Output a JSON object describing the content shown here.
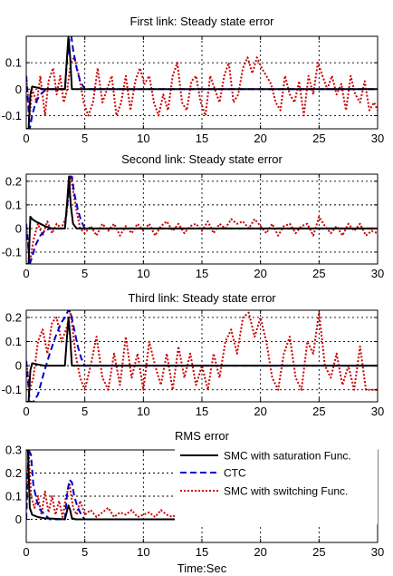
{
  "chart_data": [
    {
      "type": "line",
      "title": "First link: Steady state error",
      "xlim": [
        0,
        30
      ],
      "ylim": [
        -0.15,
        0.2
      ],
      "xticks": [
        0,
        5,
        10,
        15,
        20,
        25,
        30
      ],
      "yticks": [
        -0.1,
        0,
        0.1
      ],
      "ytick_labels": [
        "-0.1",
        "0",
        "0.1"
      ],
      "grid": true,
      "series": [
        {
          "color": "#000000",
          "style": "solid",
          "width": 2,
          "x": [
            0,
            0.2,
            0.35,
            0.5,
            1.0,
            1.5,
            3.3,
            3.45,
            3.6,
            3.75,
            3.9,
            4.2,
            5,
            30
          ],
          "y": [
            -0.15,
            -0.15,
            -0.02,
            0.01,
            0.005,
            0,
            0,
            0.1,
            0.2,
            0.12,
            0,
            0,
            0,
            0
          ]
        },
        {
          "color": "#0000cc",
          "style": "dashed",
          "width": 2,
          "x": [
            0,
            0.3,
            0.5,
            0.8,
            1.2,
            1.6,
            2.0,
            3.3,
            3.5,
            3.7,
            3.85,
            4.0,
            4.3,
            4.6,
            5.0,
            30
          ],
          "y": [
            0.05,
            -0.15,
            -0.1,
            -0.05,
            -0.02,
            -0.005,
            0,
            0,
            0.12,
            0.2,
            0.2,
            0.15,
            0.08,
            0.03,
            0,
            0
          ]
        },
        {
          "color": "#cc0000",
          "style": "dotted",
          "width": 2,
          "x": [
            0,
            0.3,
            0.5,
            0.9,
            1.2,
            1.6,
            1.9,
            2.3,
            2.6,
            2.9,
            3.2,
            3.5,
            3.8,
            4.1,
            4.5,
            4.9,
            5.3,
            5.7,
            6.1,
            6.5,
            6.9,
            7.3,
            7.7,
            8.1,
            8.5,
            8.9,
            9.3,
            9.7,
            10.1,
            10.5,
            10.9,
            11.3,
            11.7,
            12.1,
            12.5,
            12.9,
            13.3,
            13.7,
            14.1,
            14.5,
            14.9,
            15.3,
            15.7,
            16.1,
            16.5,
            16.9,
            17.3,
            17.7,
            18.1,
            18.5,
            18.9,
            19.3,
            19.7,
            20.1,
            20.5,
            20.9,
            21.3,
            21.7,
            22.1,
            22.5,
            22.9,
            23.3,
            23.7,
            24.1,
            24.5,
            24.9,
            25.3,
            25.7,
            26.1,
            26.5,
            26.9,
            27.3,
            27.7,
            28.1,
            28.5,
            28.9,
            29.3,
            29.7,
            30
          ],
          "y": [
            0.05,
            -0.1,
            0.0,
            -0.05,
            0.05,
            -0.1,
            0.03,
            0.08,
            -0.02,
            0.05,
            -0.05,
            0.0,
            0.1,
            0.12,
            0.05,
            -0.05,
            -0.1,
            -0.05,
            0.08,
            -0.05,
            0.0,
            0.05,
            -0.1,
            -0.05,
            0.05,
            -0.08,
            0.03,
            0.08,
            0.02,
            0.05,
            -0.05,
            -0.1,
            -0.02,
            -0.08,
            0.05,
            0.1,
            -0.05,
            -0.08,
            0.03,
            0.05,
            -0.05,
            -0.1,
            0.05,
            0.0,
            -0.05,
            0.05,
            0.1,
            -0.05,
            -0.02,
            0.08,
            0.12,
            0.06,
            0.12,
            0.08,
            0.05,
            0.02,
            -0.05,
            -0.08,
            0.05,
            -0.02,
            -0.05,
            0.03,
            -0.1,
            0.05,
            -0.02,
            0.1,
            0.05,
            0.0,
            0.05,
            -0.02,
            0.02,
            -0.08,
            0.05,
            -0.02,
            -0.05,
            0.03,
            -0.08,
            -0.05,
            -0.08
          ]
        }
      ]
    },
    {
      "type": "line",
      "title": "Second link: Steady state error",
      "xlim": [
        0,
        30
      ],
      "ylim": [
        -0.15,
        0.23
      ],
      "xticks": [
        0,
        5,
        10,
        15,
        20,
        25,
        30
      ],
      "yticks": [
        -0.1,
        0,
        0.1,
        0.2
      ],
      "ytick_labels": [
        "-0.1",
        "0",
        "0.1",
        "0.2"
      ],
      "grid": true,
      "series": [
        {
          "color": "#000000",
          "style": "solid",
          "width": 2,
          "x": [
            0,
            0.2,
            0.35,
            0.5,
            0.8,
            1.2,
            1.6,
            2.2,
            3.0,
            3.3,
            3.5,
            3.65,
            3.8,
            4.0,
            4.3,
            5,
            30
          ],
          "y": [
            -0.15,
            -0.15,
            0.05,
            0.04,
            0.03,
            0.02,
            0.01,
            0,
            0,
            0,
            0.12,
            0.22,
            0.1,
            0.02,
            0,
            0,
            0
          ]
        },
        {
          "color": "#0000cc",
          "style": "dashed",
          "width": 2,
          "x": [
            0,
            0.3,
            0.5,
            0.8,
            1.2,
            1.6,
            2.0,
            3.3,
            3.5,
            3.7,
            3.9,
            4.1,
            4.4,
            4.7,
            5.0,
            30
          ],
          "y": [
            0.02,
            -0.15,
            -0.12,
            -0.07,
            -0.03,
            -0.01,
            0,
            0,
            0.1,
            0.22,
            0.22,
            0.15,
            0.08,
            0.03,
            0,
            0
          ]
        },
        {
          "color": "#cc0000",
          "style": "dotted",
          "width": 2,
          "x": [
            0,
            0.3,
            0.6,
            1.0,
            1.4,
            1.8,
            2.2,
            2.6,
            3.0,
            3.4,
            3.8,
            4.2,
            4.6,
            5.0,
            5.5,
            6.0,
            6.5,
            7.0,
            7.5,
            8.0,
            8.5,
            9.0,
            9.5,
            10.0,
            10.5,
            11.0,
            11.5,
            12.0,
            12.5,
            13.0,
            13.5,
            14.0,
            14.5,
            15.0,
            15.5,
            16.0,
            16.5,
            17.0,
            17.5,
            18.0,
            18.5,
            19.0,
            19.5,
            20.0,
            20.5,
            21.0,
            21.5,
            22.0,
            22.5,
            23.0,
            23.5,
            24.0,
            24.5,
            25.0,
            25.5,
            26.0,
            26.5,
            27.0,
            27.5,
            28.0,
            28.5,
            29.0,
            29.5,
            30
          ],
          "y": [
            0.02,
            -0.15,
            -0.05,
            0.02,
            -0.03,
            0.03,
            -0.02,
            0.02,
            0.0,
            0.05,
            0.22,
            0.1,
            0.0,
            -0.02,
            0.01,
            -0.03,
            0.02,
            -0.01,
            0.02,
            -0.03,
            0.01,
            -0.02,
            0.02,
            -0.01,
            0.02,
            -0.03,
            0.01,
            0.03,
            -0.01,
            0.02,
            -0.02,
            0.01,
            0.02,
            -0.01,
            0.03,
            -0.02,
            0.02,
            0.0,
            0.04,
            0.02,
            0.03,
            0.0,
            0.04,
            0.01,
            -0.02,
            0.02,
            -0.03,
            0.01,
            0.02,
            -0.02,
            0.01,
            0.02,
            -0.03,
            0.05,
            0.01,
            -0.02,
            0.01,
            -0.03,
            0.02,
            -0.01,
            0.02,
            -0.03,
            -0.01,
            -0.02
          ]
        }
      ]
    },
    {
      "type": "line",
      "title": "Third link: Steady state error",
      "xlim": [
        0,
        30
      ],
      "ylim": [
        -0.15,
        0.23
      ],
      "xticks": [
        0,
        5,
        10,
        15,
        20,
        25,
        30
      ],
      "yticks": [
        -0.1,
        0,
        0.1,
        0.2
      ],
      "ytick_labels": [
        "-0.1",
        "0",
        "0.1",
        "0.2"
      ],
      "grid": true,
      "series": [
        {
          "color": "#000000",
          "style": "solid",
          "width": 2,
          "x": [
            0,
            0.2,
            0.35,
            0.5,
            1.0,
            1.5,
            3.3,
            3.45,
            3.6,
            3.75,
            3.9,
            4.2,
            5,
            30
          ],
          "y": [
            -0.15,
            -0.15,
            -0.02,
            0.01,
            0.005,
            0,
            0,
            0.1,
            0.2,
            0.12,
            0,
            0,
            0,
            0
          ]
        },
        {
          "color": "#0000cc",
          "style": "dashed",
          "width": 2,
          "x": [
            0,
            0.3,
            0.6,
            1.0,
            1.5,
            2.0,
            2.5,
            3.0,
            3.3,
            3.6,
            3.8,
            4.1,
            4.4,
            4.7,
            5.0,
            30
          ],
          "y": [
            0.02,
            -0.15,
            -0.15,
            -0.12,
            -0.03,
            0.05,
            0.12,
            0.18,
            0.2,
            0.23,
            0.22,
            0.15,
            0.08,
            0.03,
            0,
            0
          ]
        },
        {
          "color": "#cc0000",
          "style": "dotted",
          "width": 2,
          "x": [
            0,
            0.3,
            0.6,
            1.0,
            1.4,
            1.8,
            2.2,
            2.6,
            3.0,
            3.4,
            3.8,
            4.2,
            4.6,
            5.0,
            5.5,
            6.0,
            6.5,
            7.0,
            7.5,
            8.0,
            8.5,
            9.0,
            9.5,
            10.0,
            10.5,
            11.0,
            11.5,
            12.0,
            12.5,
            13.0,
            13.5,
            14.0,
            14.5,
            15.0,
            15.5,
            16.0,
            16.5,
            17.0,
            17.5,
            18.0,
            18.5,
            19.0,
            19.5,
            20.0,
            20.5,
            21.0,
            21.5,
            22.0,
            22.5,
            23.0,
            23.5,
            24.0,
            24.5,
            25.0,
            25.5,
            26.0,
            26.5,
            27.0,
            27.5,
            28.0,
            28.5,
            29.0,
            29.5,
            30
          ],
          "y": [
            0.02,
            -0.1,
            -0.05,
            0.1,
            0.15,
            0.05,
            0.18,
            0.2,
            0.1,
            0.15,
            0.22,
            0.05,
            -0.05,
            -0.1,
            0.0,
            0.12,
            -0.05,
            -0.1,
            0.05,
            -0.08,
            0.12,
            -0.05,
            0.05,
            -0.1,
            0.1,
            0.0,
            -0.08,
            0.05,
            -0.1,
            0.08,
            -0.05,
            0.05,
            -0.08,
            0.0,
            -0.1,
            0.05,
            -0.05,
            0.1,
            0.15,
            0.05,
            0.2,
            0.22,
            0.12,
            0.2,
            0.1,
            -0.05,
            -0.1,
            0.05,
            0.12,
            -0.05,
            -0.1,
            0.1,
            0.05,
            0.22,
            0.0,
            -0.05,
            0.05,
            -0.08,
            0.0,
            -0.1,
            0.08,
            -0.1,
            -0.1,
            -0.1
          ]
        }
      ]
    },
    {
      "type": "line",
      "title": "RMS error",
      "xlabel": "Time:Sec",
      "xlim": [
        0,
        30
      ],
      "ylim": [
        -0.1,
        0.3
      ],
      "xticks": [
        0,
        5,
        10,
        15,
        20,
        25,
        30
      ],
      "yticks": [
        0,
        0.1,
        0.2,
        0.3
      ],
      "ytick_labels": [
        "0",
        "0.1",
        "0.2",
        "0.3"
      ],
      "grid": true,
      "legend": "top-right",
      "series": [
        {
          "name": "SMC with saturation Func.",
          "color": "#000000",
          "style": "solid",
          "width": 2,
          "x": [
            0,
            0.15,
            0.3,
            0.5,
            1.0,
            1.5,
            3.3,
            3.45,
            3.6,
            3.75,
            3.9,
            4.2,
            5,
            30
          ],
          "y": [
            0.3,
            0.3,
            0.05,
            0.02,
            0.01,
            0.005,
            0,
            0.03,
            0.06,
            0.04,
            0.005,
            0,
            0,
            0
          ]
        },
        {
          "name": "CTC",
          "color": "#0000cc",
          "style": "dashed",
          "width": 2,
          "x": [
            0,
            0.2,
            0.4,
            0.6,
            0.9,
            1.2,
            1.6,
            2.0,
            3.3,
            3.5,
            3.7,
            3.9,
            4.1,
            4.4,
            4.7,
            5.0,
            30
          ],
          "y": [
            0.0,
            0.3,
            0.28,
            0.15,
            0.08,
            0.04,
            0.02,
            0.0,
            0.0,
            0.12,
            0.17,
            0.16,
            0.1,
            0.05,
            0.02,
            0.0,
            0.0
          ]
        },
        {
          "name": "SMC with switching Func.",
          "color": "#cc0000",
          "style": "dotted",
          "width": 2,
          "x": [
            0,
            0.2,
            0.4,
            0.7,
            1.0,
            1.3,
            1.6,
            1.9,
            2.2,
            2.5,
            2.8,
            3.1,
            3.4,
            3.7,
            4.0,
            4.3,
            4.6,
            5.0,
            5.5,
            6.0,
            6.5,
            7.0,
            7.5,
            8.0,
            8.5,
            9.0,
            9.5,
            10.0,
            10.5,
            11.0,
            11.5,
            12.0,
            12.5,
            13.0,
            13.5,
            14.0,
            14.5,
            15.0,
            15.5,
            16.0,
            16.5,
            17.0,
            17.5,
            18.0,
            18.5,
            19.0,
            19.5,
            20.0,
            20.5,
            21.0,
            21.5,
            22.0,
            22.5,
            23.0,
            23.5,
            24.0,
            24.5,
            25.0,
            25.5,
            26.0,
            26.5,
            27.0,
            27.5,
            28.0,
            28.5,
            29.0,
            29.5,
            30
          ],
          "y": [
            0.05,
            0.3,
            0.1,
            0.05,
            0.1,
            0.02,
            0.12,
            0.03,
            0.1,
            0.02,
            0.08,
            0.01,
            0.1,
            0.15,
            0.05,
            0.02,
            0.08,
            0.02,
            0.04,
            0.01,
            0.03,
            0.05,
            0.01,
            0.03,
            0.02,
            0.04,
            0.01,
            0.02,
            0.03,
            0.01,
            0.04,
            0.02,
            0.01,
            0.03,
            0.05,
            0.02,
            0.01,
            0.03,
            0.02,
            0.04,
            0.01,
            0.03,
            0.05,
            0.02,
            0.03,
            0.06,
            0.02,
            0.04,
            0.03,
            0.01,
            0.03,
            0.02,
            0.04,
            0.01,
            0.03,
            0.02,
            0.01,
            0.05,
            0.02,
            0.03,
            0.01,
            0.02,
            0.04,
            0.01,
            0.02,
            0.01,
            0.02,
            0.01
          ]
        }
      ]
    }
  ]
}
